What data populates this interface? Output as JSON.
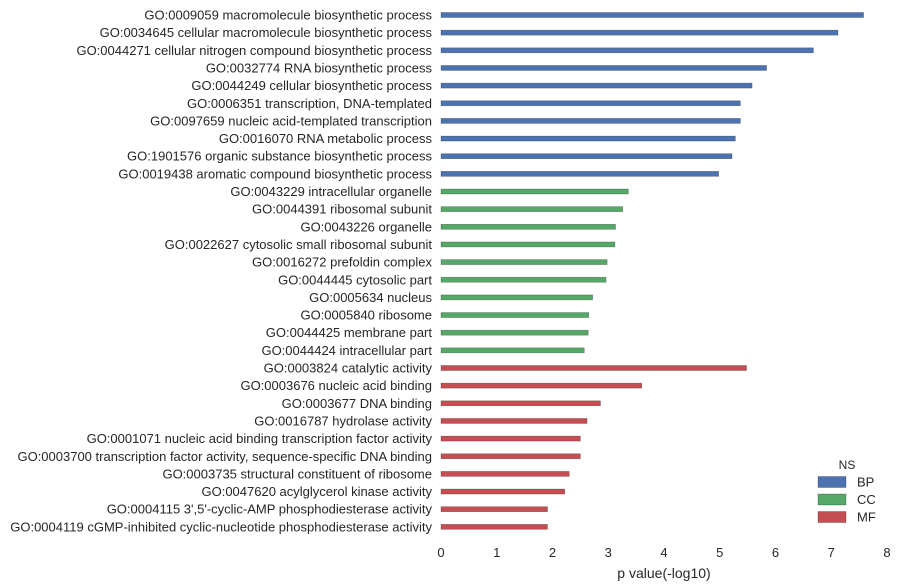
{
  "chart_data": {
    "type": "bar",
    "orientation": "horizontal",
    "xlabel": "p value(-log10)",
    "xlim": [
      0,
      8
    ],
    "xticks": [
      "0",
      "1",
      "2",
      "3",
      "4",
      "5",
      "6",
      "7",
      "8"
    ],
    "grid": false,
    "legend": {
      "title": "NS",
      "placement": "lower-right",
      "entries": [
        {
          "name": "BP",
          "color": "#4c72b0"
        },
        {
          "name": "CC",
          "color": "#55a868"
        },
        {
          "name": "MF",
          "color": "#c44e52"
        }
      ]
    },
    "categories": [
      {
        "label": "GO:0009059 macromolecule biosynthetic process",
        "value": 7.58,
        "ns": "BP"
      },
      {
        "label": "GO:0034645 cellular macromolecule biosynthetic process",
        "value": 7.12,
        "ns": "BP"
      },
      {
        "label": "GO:0044271 cellular nitrogen compound biosynthetic process",
        "value": 6.68,
        "ns": "BP"
      },
      {
        "label": "GO:0032774 RNA biosynthetic process",
        "value": 5.84,
        "ns": "BP"
      },
      {
        "label": "GO:0044249 cellular biosynthetic process",
        "value": 5.58,
        "ns": "BP"
      },
      {
        "label": "GO:0006351 transcription, DNA-templated",
        "value": 5.37,
        "ns": "BP"
      },
      {
        "label": "GO:0097659 nucleic acid-templated transcription",
        "value": 5.37,
        "ns": "BP"
      },
      {
        "label": "GO:0016070 RNA metabolic process",
        "value": 5.28,
        "ns": "BP"
      },
      {
        "label": "GO:1901576 organic substance biosynthetic process",
        "value": 5.22,
        "ns": "BP"
      },
      {
        "label": "GO:0019438 aromatic compound biosynthetic process",
        "value": 4.98,
        "ns": "BP"
      },
      {
        "label": "GO:0043229 intracellular organelle",
        "value": 3.36,
        "ns": "CC"
      },
      {
        "label": "GO:0044391 ribosomal subunit",
        "value": 3.26,
        "ns": "CC"
      },
      {
        "label": "GO:0043226 organelle",
        "value": 3.13,
        "ns": "CC"
      },
      {
        "label": "GO:0022627 cytosolic small ribosomal subunit",
        "value": 3.12,
        "ns": "CC"
      },
      {
        "label": "GO:0016272 prefoldin complex",
        "value": 2.98,
        "ns": "CC"
      },
      {
        "label": "GO:0044445 cytosolic part",
        "value": 2.96,
        "ns": "CC"
      },
      {
        "label": "GO:0005634 nucleus",
        "value": 2.72,
        "ns": "CC"
      },
      {
        "label": "GO:0005840 ribosome",
        "value": 2.65,
        "ns": "CC"
      },
      {
        "label": "GO:0044425 membrane part",
        "value": 2.64,
        "ns": "CC"
      },
      {
        "label": "GO:0044424 intracellular part",
        "value": 2.57,
        "ns": "CC"
      },
      {
        "label": "GO:0003824 catalytic activity",
        "value": 5.48,
        "ns": "MF"
      },
      {
        "label": "GO:0003676 nucleic acid binding",
        "value": 3.6,
        "ns": "MF"
      },
      {
        "label": "GO:0003677 DNA binding",
        "value": 2.86,
        "ns": "MF"
      },
      {
        "label": "GO:0016787 hydrolase activity",
        "value": 2.62,
        "ns": "MF"
      },
      {
        "label": "GO:0001071 nucleic acid binding transcription factor activity",
        "value": 2.5,
        "ns": "MF"
      },
      {
        "label": "GO:0003700 transcription factor activity, sequence-specific DNA binding",
        "value": 2.5,
        "ns": "MF"
      },
      {
        "label": "GO:0003735 structural constituent of ribosome",
        "value": 2.3,
        "ns": "MF"
      },
      {
        "label": "GO:0047620 acylglycerol kinase activity",
        "value": 2.22,
        "ns": "MF"
      },
      {
        "label": "GO:0004115 3',5'-cyclic-AMP phosphodiesterase activity",
        "value": 1.91,
        "ns": "MF"
      },
      {
        "label": "GO:0004119 cGMP-inhibited cyclic-nucleotide phosphodiesterase activity",
        "value": 1.91,
        "ns": "MF"
      }
    ]
  }
}
